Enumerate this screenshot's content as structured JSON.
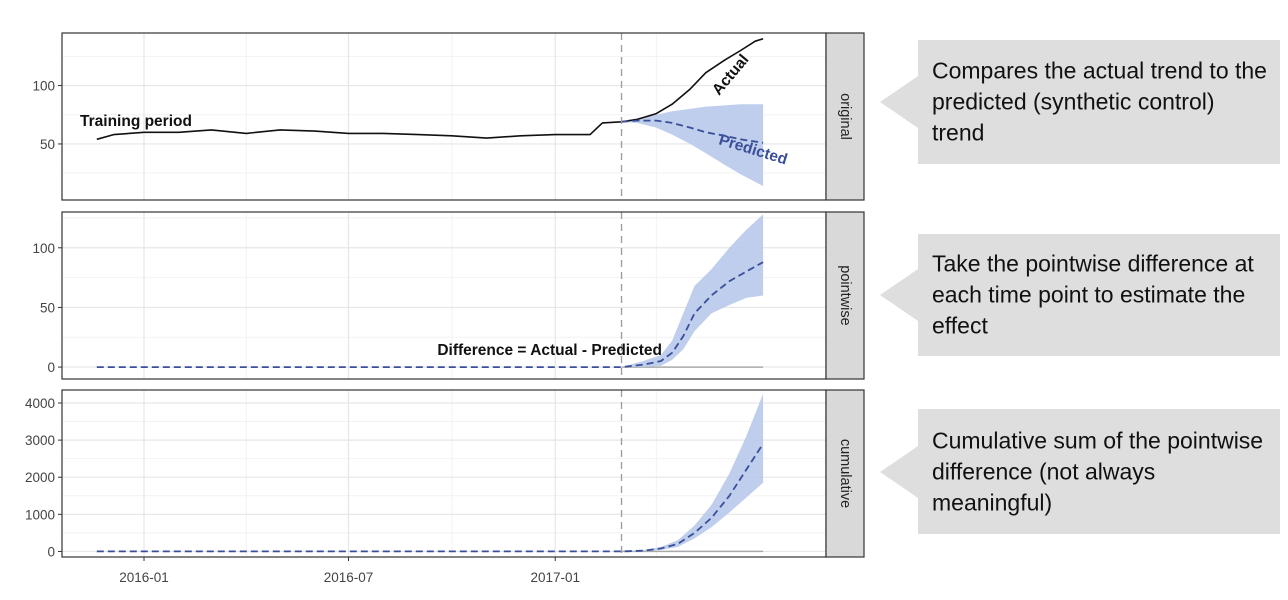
{
  "chart_data": {
    "type": "line",
    "x_axis": {
      "type": "date",
      "range": [
        "2015-10-20",
        "2017-08-30"
      ],
      "tick_labels": [
        "2016-01",
        "2016-07",
        "2017-01"
      ],
      "ticks": [
        "2016-01-01",
        "2016-07-01",
        "2017-01-01"
      ]
    },
    "intervention_date": "2017-03-01",
    "panels": [
      {
        "strip": "original",
        "ylim": [
          2,
          145
        ],
        "yticks": [
          50,
          100
        ],
        "series": [
          {
            "name": "Actual",
            "style": "solid",
            "color": "#111111",
            "x": [
              "2015-11-20",
              "2015-12-05",
              "2016-01-01",
              "2016-02-01",
              "2016-03-01",
              "2016-04-01",
              "2016-05-01",
              "2016-06-01",
              "2016-07-01",
              "2016-08-01",
              "2016-09-01",
              "2016-10-01",
              "2016-11-01",
              "2016-12-01",
              "2017-01-01",
              "2017-02-01",
              "2017-02-12",
              "2017-03-01",
              "2017-03-15",
              "2017-04-01",
              "2017-04-15",
              "2017-05-01",
              "2017-05-15",
              "2017-06-01",
              "2017-06-15",
              "2017-06-28",
              "2017-07-05"
            ],
            "y": [
              54,
              58,
              60,
              60,
              62,
              59,
              62,
              61,
              59,
              59,
              58,
              57,
              55,
              57,
              58,
              58,
              68,
              69,
              71,
              76,
              84,
              97,
              111,
              122,
              130,
              138,
              140
            ]
          },
          {
            "name": "Predicted",
            "style": "dashed",
            "color": "#3a4f9a",
            "x": [
              "2017-03-01",
              "2017-03-15",
              "2017-04-01",
              "2017-04-15",
              "2017-05-01",
              "2017-05-15",
              "2017-06-01",
              "2017-06-15",
              "2017-07-05"
            ],
            "y": [
              69,
              70,
              70,
              68,
              64,
              60,
              57,
              54,
              51
            ],
            "lower": [
              69,
              68,
              64,
              58,
              50,
              42,
              32,
              24,
              14
            ],
            "upper": [
              69,
              72,
              75,
              78,
              80,
              82,
              83,
              84,
              84
            ]
          }
        ],
        "annotations": [
          "Training period",
          "Actual",
          "Predicted"
        ]
      },
      {
        "strip": "pointwise",
        "ylim": [
          -10,
          130
        ],
        "yticks": [
          0,
          50,
          100
        ],
        "series": [
          {
            "name": "",
            "style": "dashed",
            "color": "#3a4f9a",
            "x": [
              "2015-11-20",
              "2016-01-01",
              "2016-03-01",
              "2016-05-01",
              "2016-07-01",
              "2016-09-01",
              "2016-11-01",
              "2017-01-01",
              "2017-03-01",
              "2017-03-20",
              "2017-04-05",
              "2017-04-15",
              "2017-04-25",
              "2017-05-05",
              "2017-05-20",
              "2017-06-05",
              "2017-06-20",
              "2017-07-05"
            ],
            "y": [
              0,
              0,
              0,
              0,
              0,
              0,
              0,
              0,
              0,
              2,
              5,
              12,
              26,
              45,
              60,
              72,
              80,
              88
            ],
            "lower": [
              0,
              0,
              0,
              0,
              0,
              0,
              0,
              0,
              0,
              0,
              1,
              6,
              15,
              30,
              45,
              52,
              58,
              60
            ],
            "upper": [
              0,
              0,
              0,
              0,
              0,
              0,
              0,
              0,
              0,
              5,
              10,
              22,
              45,
              68,
              82,
              100,
              115,
              128
            ]
          }
        ],
        "annotations": [
          "Difference = Actual - Predicted"
        ]
      },
      {
        "strip": "cumulative",
        "ylim": [
          -150,
          4350
        ],
        "yticks": [
          0,
          1000,
          2000,
          3000,
          4000
        ],
        "series": [
          {
            "name": "",
            "style": "dashed",
            "color": "#3a4f9a",
            "x": [
              "2015-11-20",
              "2016-01-01",
              "2016-06-01",
              "2016-11-01",
              "2017-03-01",
              "2017-03-20",
              "2017-04-05",
              "2017-04-20",
              "2017-05-05",
              "2017-05-20",
              "2017-06-05",
              "2017-06-20",
              "2017-07-05"
            ],
            "y": [
              0,
              0,
              0,
              0,
              0,
              20,
              80,
              200,
              500,
              900,
              1500,
              2200,
              2900
            ],
            "lower": [
              0,
              0,
              0,
              0,
              0,
              10,
              40,
              120,
              350,
              650,
              1050,
              1450,
              1850
            ],
            "upper": [
              0,
              0,
              0,
              0,
              0,
              30,
              120,
              300,
              700,
              1250,
              2100,
              3100,
              4250
            ]
          }
        ]
      }
    ],
    "grid": true,
    "colors": {
      "band": "#b7c9ea",
      "zero_line": "#a9a9a9",
      "vline": "#9a9a9a",
      "strip_bg": "#d9d9d9"
    }
  },
  "callouts": [
    {
      "text": "Compares the actual trend to the predicted (synthetic control) trend"
    },
    {
      "text": "Take the pointwise difference at each time point to estimate the effect"
    },
    {
      "text": "Cumulative sum of the pointwise difference (not always meaningful)"
    }
  ]
}
